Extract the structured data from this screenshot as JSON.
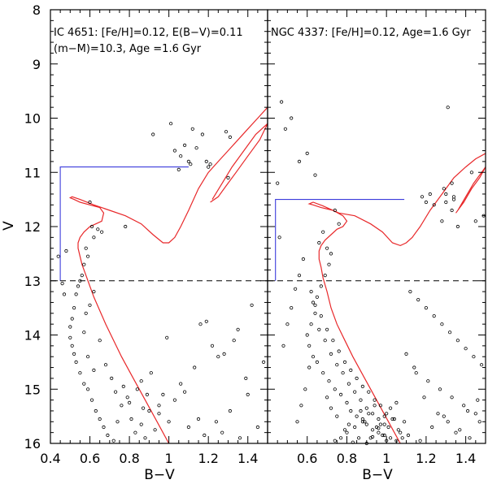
{
  "colors": {
    "frame": "#000000",
    "isochrone": "#e8282a",
    "box": "#3b3bdc",
    "points": "#000000",
    "dashed": "#000000"
  },
  "chart_data": [
    {
      "type": "scatter",
      "name": "IC 4651",
      "xlabel": "B−V",
      "ylabel": "V",
      "xlim": [
        0.4,
        1.5
      ],
      "ylim": [
        16,
        8
      ],
      "x_ticks": [
        "0.4",
        "0.6",
        "0.8",
        "1",
        "1.2",
        "1.4"
      ],
      "x_tick_values": [
        0.4,
        0.6,
        0.8,
        1.0,
        1.2,
        1.4
      ],
      "y_ticks": [
        "8",
        "9",
        "10",
        "11",
        "12",
        "13",
        "14",
        "15",
        "16"
      ],
      "y_tick_values": [
        8,
        9,
        10,
        11,
        12,
        13,
        14,
        15,
        16
      ],
      "annotations": [
        "IC 4651: [Fe/H]=0.12, E(B−V)=0.11",
        "(m−M)=10.3, Age =1.6 Gyr"
      ],
      "dashed_line_V": 13.0,
      "selection_box": [
        [
          1.1,
          10.9
        ],
        [
          0.45,
          10.9
        ],
        [
          0.45,
          13.0
        ]
      ],
      "isochrone": {
        "x": [
          1.0,
          0.94,
          0.88,
          0.82,
          0.76,
          0.72,
          0.68,
          0.65,
          0.62,
          0.6,
          0.58,
          0.56,
          0.55,
          0.54,
          0.54,
          0.55,
          0.57,
          0.6,
          0.63,
          0.66,
          0.67,
          0.65,
          0.6,
          0.55,
          0.52,
          0.5,
          0.51,
          0.55,
          0.62,
          0.7,
          0.78,
          0.86,
          0.92,
          0.97,
          1.0,
          1.03,
          1.06,
          1.1,
          1.15,
          1.2,
          1.25,
          1.3,
          1.35,
          1.4,
          1.45,
          1.5
        ],
        "y": [
          16.0,
          15.6,
          15.2,
          14.8,
          14.4,
          14.1,
          13.8,
          13.55,
          13.3,
          13.1,
          12.9,
          12.7,
          12.55,
          12.4,
          12.3,
          12.2,
          12.1,
          12.0,
          11.95,
          11.9,
          11.75,
          11.65,
          11.6,
          11.55,
          11.5,
          11.47,
          11.45,
          11.5,
          11.6,
          11.7,
          11.8,
          11.95,
          12.15,
          12.3,
          12.3,
          12.2,
          12.0,
          11.7,
          11.3,
          11.0,
          10.8,
          10.6,
          10.4,
          10.2,
          10.0,
          9.8
        ],
        "branch": {
          "x": [
            1.22,
            1.27,
            1.32,
            1.38,
            1.44,
            1.5,
            1.46,
            1.4,
            1.34,
            1.29,
            1.25,
            1.21
          ],
          "y": [
            11.5,
            11.2,
            10.9,
            10.6,
            10.3,
            10.1,
            10.4,
            10.7,
            11.0,
            11.25,
            11.45,
            11.55
          ]
        }
      },
      "points": {
        "x": [
          1.01,
          1.03,
          1.06,
          1.08,
          1.1,
          1.11,
          1.14,
          1.17,
          1.19,
          1.2,
          1.21,
          0.92,
          1.12,
          1.29,
          1.31,
          1.05,
          1.3,
          0.78,
          0.58,
          0.62,
          0.64,
          0.66,
          0.61,
          0.6,
          0.59,
          0.57,
          0.56,
          0.55,
          0.54,
          0.53,
          0.52,
          0.51,
          0.5,
          0.5,
          0.51,
          0.52,
          0.53,
          0.55,
          0.57,
          0.59,
          0.61,
          0.63,
          0.65,
          0.67,
          0.69,
          0.72,
          0.74,
          0.76,
          0.79,
          0.81,
          0.83,
          0.86,
          0.88,
          0.9,
          0.93,
          0.57,
          0.59,
          0.62,
          0.58,
          0.6,
          0.62,
          0.65,
          0.68,
          0.71,
          0.73,
          0.77,
          0.8,
          0.84,
          0.87,
          0.91,
          0.95,
          0.97,
          1.0,
          1.03,
          1.06,
          1.1,
          1.15,
          1.18,
          1.24,
          1.27,
          1.31,
          1.36,
          1.4,
          1.45,
          1.48,
          1.33,
          1.28,
          1.35,
          1.42,
          1.25,
          1.22,
          1.39,
          1.13,
          1.16,
          0.99,
          0.89,
          0.86,
          0.95,
          1.08,
          1.19,
          0.48,
          0.44,
          0.46,
          0.47
        ],
        "y": [
          10.1,
          10.6,
          10.7,
          10.5,
          10.8,
          10.85,
          10.55,
          10.3,
          10.8,
          10.9,
          10.85,
          10.3,
          10.2,
          10.25,
          10.35,
          10.95,
          11.1,
          12.0,
          12.4,
          12.2,
          12.05,
          12.1,
          12.0,
          11.55,
          12.55,
          12.7,
          12.9,
          13.0,
          13.1,
          13.25,
          13.5,
          13.7,
          13.85,
          14.05,
          14.2,
          14.35,
          14.5,
          14.7,
          14.9,
          15.0,
          15.2,
          15.4,
          15.55,
          15.7,
          15.85,
          15.95,
          15.6,
          15.3,
          15.15,
          15.55,
          15.8,
          15.65,
          15.9,
          15.4,
          15.75,
          13.95,
          14.4,
          14.65,
          13.6,
          13.45,
          13.2,
          14.1,
          14.55,
          14.8,
          15.05,
          14.95,
          15.25,
          15.0,
          15.35,
          14.7,
          15.45,
          15.1,
          15.6,
          15.2,
          14.9,
          15.7,
          15.55,
          15.85,
          15.6,
          15.8,
          15.4,
          15.9,
          15.1,
          15.7,
          14.5,
          14.1,
          14.35,
          13.9,
          13.45,
          14.4,
          14.2,
          14.8,
          14.6,
          13.8,
          14.05,
          15.1,
          14.85,
          15.3,
          15.05,
          13.75,
          12.45,
          12.55,
          13.05,
          13.25
        ]
      }
    },
    {
      "type": "scatter",
      "name": "NGC 4337",
      "xlabel": "B−V",
      "ylabel": "",
      "xlim": [
        0.4,
        1.5
      ],
      "ylim": [
        16,
        8
      ],
      "x_ticks": [
        "0.6",
        "0.8",
        "1",
        "1.2",
        "1.4"
      ],
      "x_tick_values": [
        0.6,
        0.8,
        1.0,
        1.2,
        1.4
      ],
      "y_ticks": [],
      "y_tick_values": [
        8,
        9,
        10,
        11,
        12,
        13,
        14,
        15,
        16
      ],
      "annotations": [
        "NGC 4337: [Fe/H]=0.12, Age=1.6 Gyr"
      ],
      "dashed_line_V": 13.0,
      "selection_box": [
        [
          1.09,
          11.5
        ],
        [
          0.44,
          11.5
        ],
        [
          0.44,
          13.0
        ]
      ],
      "isochrone": {
        "x": [
          1.07,
          1.01,
          0.95,
          0.89,
          0.83,
          0.79,
          0.75,
          0.72,
          0.7,
          0.68,
          0.67,
          0.66,
          0.66,
          0.67,
          0.69,
          0.72,
          0.75,
          0.78,
          0.8,
          0.78,
          0.73,
          0.67,
          0.63,
          0.61,
          0.63,
          0.68,
          0.76,
          0.84,
          0.92,
          0.98,
          1.03,
          1.07,
          1.1,
          1.13,
          1.17,
          1.22,
          1.28,
          1.34,
          1.4,
          1.45,
          1.5
        ],
        "y": [
          16.0,
          15.6,
          15.2,
          14.8,
          14.4,
          14.1,
          13.8,
          13.5,
          13.2,
          12.95,
          12.75,
          12.6,
          12.45,
          12.35,
          12.25,
          12.15,
          12.05,
          12.0,
          11.9,
          11.8,
          11.7,
          11.65,
          11.6,
          11.58,
          11.55,
          11.62,
          11.75,
          11.8,
          11.95,
          12.1,
          12.3,
          12.35,
          12.3,
          12.2,
          12.0,
          11.7,
          11.4,
          11.1,
          10.9,
          10.75,
          10.65
        ],
        "branch": {
          "x": [
            1.36,
            1.4,
            1.44,
            1.48,
            1.5,
            1.47,
            1.43,
            1.39,
            1.35
          ],
          "y": [
            11.7,
            11.45,
            11.2,
            11.0,
            10.9,
            11.1,
            11.3,
            11.55,
            11.75
          ]
        }
      },
      "points": {
        "x": [
          0.47,
          0.49,
          0.52,
          0.56,
          0.6,
          0.64,
          0.45,
          0.46,
          1.31,
          1.22,
          1.34,
          1.29,
          1.24,
          1.33,
          1.3,
          1.28,
          1.34,
          1.3,
          1.18,
          1.2,
          1.36,
          1.45,
          1.33,
          1.49,
          1.43,
          0.68,
          0.66,
          0.7,
          0.72,
          0.76,
          0.74,
          0.71,
          0.69,
          0.67,
          0.65,
          0.63,
          0.64,
          0.62,
          0.6,
          0.61,
          0.63,
          0.65,
          0.68,
          0.71,
          0.74,
          0.77,
          0.8,
          0.82,
          0.85,
          0.88,
          0.9,
          0.93,
          0.96,
          0.99,
          1.02,
          1.05,
          1.08,
          0.66,
          0.69,
          0.72,
          0.75,
          0.78,
          0.81,
          0.84,
          0.87,
          0.9,
          0.93,
          0.96,
          0.99,
          1.01,
          0.62,
          0.64,
          0.67,
          0.7,
          0.73,
          0.76,
          0.79,
          0.82,
          0.85,
          0.88,
          0.91,
          0.94,
          0.97,
          1.0,
          1.03,
          0.58,
          0.56,
          0.54,
          0.52,
          0.5,
          0.48,
          0.61,
          0.59,
          0.57,
          0.55,
          1.12,
          1.16,
          1.2,
          1.24,
          1.28,
          1.32,
          1.36,
          1.4,
          1.44,
          1.48,
          1.15,
          1.21,
          1.27,
          1.33,
          1.39,
          1.45,
          1.1,
          1.14,
          1.19,
          1.26,
          1.31,
          1.37,
          1.42,
          1.47,
          1.11,
          1.17,
          1.23,
          1.29,
          1.35,
          1.41,
          1.46,
          0.88,
          0.92,
          0.95,
          0.98,
          1.0,
          1.06,
          1.09,
          0.9,
          0.86,
          0.83,
          0.79,
          0.75,
          0.72,
          0.7,
          0.97,
          1.04,
          1.07,
          0.94,
          0.91,
          0.89,
          0.84,
          0.8,
          0.77,
          0.74,
          0.81,
          0.87,
          0.99,
          1.02,
          1.05,
          0.93,
          0.96
        ],
        "y": [
          9.7,
          10.2,
          10.0,
          10.8,
          10.65,
          11.05,
          11.2,
          12.2,
          9.8,
          11.4,
          11.45,
          11.3,
          11.6,
          11.2,
          11.4,
          11.9,
          11.5,
          11.55,
          11.45,
          11.55,
          12.0,
          11.9,
          11.7,
          11.8,
          11.0,
          12.1,
          12.3,
          12.4,
          12.5,
          11.95,
          11.7,
          12.7,
          12.9,
          13.1,
          13.3,
          13.4,
          13.6,
          13.8,
          14.0,
          14.2,
          14.4,
          14.5,
          14.7,
          14.85,
          15.0,
          15.1,
          15.25,
          15.4,
          15.5,
          15.6,
          15.65,
          15.75,
          15.8,
          15.85,
          15.9,
          15.95,
          15.9,
          13.9,
          14.1,
          14.35,
          14.55,
          14.7,
          14.9,
          15.05,
          15.2,
          15.35,
          15.45,
          15.55,
          15.65,
          15.7,
          13.2,
          13.45,
          13.65,
          13.9,
          14.1,
          14.3,
          14.5,
          14.65,
          14.8,
          14.95,
          15.05,
          15.2,
          15.3,
          15.45,
          15.55,
          12.6,
          12.9,
          13.15,
          13.5,
          13.8,
          14.2,
          14.6,
          15.0,
          15.3,
          15.6,
          13.2,
          13.35,
          13.5,
          13.65,
          13.8,
          13.95,
          14.1,
          14.25,
          14.4,
          14.55,
          14.7,
          14.85,
          15.0,
          15.15,
          15.3,
          15.45,
          14.35,
          14.6,
          15.15,
          15.45,
          15.6,
          15.75,
          15.9,
          15.6,
          15.85,
          15.95,
          15.7,
          15.5,
          15.8,
          15.4,
          15.2,
          15.55,
          15.9,
          15.7,
          15.85,
          15.95,
          15.75,
          15.6,
          16.0,
          15.9,
          15.98,
          15.75,
          15.5,
          15.35,
          15.15,
          15.65,
          15.55,
          15.8,
          15.3,
          15.45,
          15.6,
          15.7,
          15.8,
          15.9,
          15.95,
          15.65,
          15.4,
          15.5,
          15.35,
          15.25,
          15.88,
          15.72
        ]
      }
    }
  ]
}
